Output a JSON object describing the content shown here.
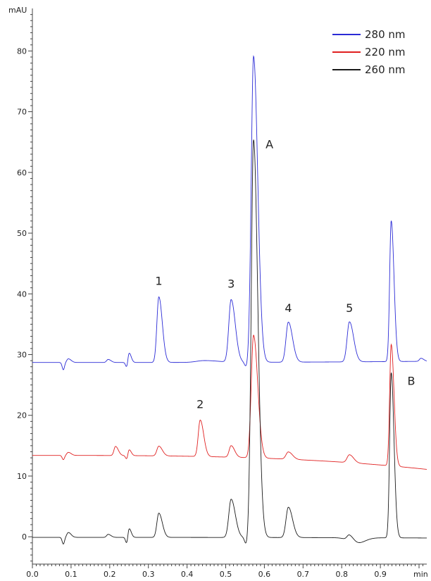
{
  "chart_data": {
    "type": "line",
    "title": "",
    "xlabel": "",
    "ylabel": "",
    "x_unit": "min",
    "y_unit": "mAU",
    "xlim": [
      0.0,
      1.02
    ],
    "ylim": [
      -4.5,
      87
    ],
    "x_ticks": [
      {
        "value": 0.0,
        "label": "0.0"
      },
      {
        "value": 0.1,
        "label": "0.1"
      },
      {
        "value": 0.2,
        "label": "0.2"
      },
      {
        "value": 0.3,
        "label": "0.3"
      },
      {
        "value": 0.4,
        "label": "0.4"
      },
      {
        "value": 0.5,
        "label": "0.5"
      },
      {
        "value": 0.6,
        "label": "0.6"
      },
      {
        "value": 0.7,
        "label": "0.7"
      },
      {
        "value": 0.8,
        "label": "0.8"
      },
      {
        "value": 0.9,
        "label": "0.9"
      }
    ],
    "y_ticks": [
      {
        "value": 0,
        "label": "0"
      },
      {
        "value": 10,
        "label": "10"
      },
      {
        "value": 20,
        "label": "20"
      },
      {
        "value": 30,
        "label": "30"
      },
      {
        "value": 40,
        "label": "40"
      },
      {
        "value": 50,
        "label": "50"
      },
      {
        "value": 60,
        "label": "60"
      },
      {
        "value": 70,
        "label": "70"
      },
      {
        "value": 80,
        "label": "80"
      }
    ],
    "grid": false,
    "legend_position": "top-right",
    "series": [
      {
        "name": "280 nm",
        "color": "#2b2bd6",
        "baseline": 28.7,
        "baseline_end": 28.9,
        "peaks": [
          {
            "x": 0.093,
            "height": 0.6,
            "width": 0.004
          },
          {
            "x": 0.196,
            "height": 0.5,
            "width": 0.004
          },
          {
            "x": 0.25,
            "height": 1.6,
            "width": 0.003
          },
          {
            "x": 0.327,
            "height": 10.8,
            "width": 0.005
          },
          {
            "x": 0.445,
            "height": 0.3,
            "width": 0.02
          },
          {
            "x": 0.514,
            "height": 10.3,
            "width": 0.006
          },
          {
            "x": 0.572,
            "height": 50.4,
            "width": 0.006
          },
          {
            "x": 0.662,
            "height": 6.6,
            "width": 0.006
          },
          {
            "x": 0.82,
            "height": 6.6,
            "width": 0.006
          },
          {
            "x": 0.928,
            "height": 23.2,
            "width": 0.004
          },
          {
            "x": 1.005,
            "height": 0.5,
            "width": 0.004
          }
        ],
        "dips": [
          {
            "x": 0.08,
            "depth": 1.2,
            "width": 0.003
          },
          {
            "x": 0.244,
            "depth": 0.8,
            "width": 0.003
          },
          {
            "x": 0.553,
            "depth": 0.8,
            "width": 0.004
          }
        ]
      },
      {
        "name": "220 nm",
        "color": "#e02020",
        "baseline": 13.4,
        "baseline_end": 11.1,
        "peaks": [
          {
            "x": 0.093,
            "height": 0.5,
            "width": 0.004
          },
          {
            "x": 0.215,
            "height": 1.5,
            "width": 0.004
          },
          {
            "x": 0.25,
            "height": 1.0,
            "width": 0.003
          },
          {
            "x": 0.327,
            "height": 1.6,
            "width": 0.005
          },
          {
            "x": 0.434,
            "height": 6.0,
            "width": 0.005
          },
          {
            "x": 0.514,
            "height": 1.9,
            "width": 0.005
          },
          {
            "x": 0.572,
            "height": 20.2,
            "width": 0.006
          },
          {
            "x": 0.662,
            "height": 1.2,
            "width": 0.006
          },
          {
            "x": 0.82,
            "height": 1.3,
            "width": 0.006
          },
          {
            "x": 0.928,
            "height": 20.0,
            "width": 0.004
          }
        ],
        "dips": [
          {
            "x": 0.08,
            "depth": 0.7,
            "width": 0.003
          },
          {
            "x": 0.244,
            "depth": 0.6,
            "width": 0.003
          }
        ]
      },
      {
        "name": "260 nm",
        "color": "#1a1a1a",
        "baseline": -0.1,
        "baseline_end": -0.2,
        "peaks": [
          {
            "x": 0.093,
            "height": 0.8,
            "width": 0.004
          },
          {
            "x": 0.196,
            "height": 0.5,
            "width": 0.004
          },
          {
            "x": 0.25,
            "height": 1.5,
            "width": 0.003
          },
          {
            "x": 0.327,
            "height": 4.0,
            "width": 0.005
          },
          {
            "x": 0.514,
            "height": 6.3,
            "width": 0.006
          },
          {
            "x": 0.572,
            "height": 65.5,
            "width": 0.006
          },
          {
            "x": 0.662,
            "height": 5.0,
            "width": 0.006
          },
          {
            "x": 0.82,
            "height": 1.0,
            "width": 0.006
          },
          {
            "x": 0.928,
            "height": 27.2,
            "width": 0.004
          }
        ],
        "dips": [
          {
            "x": 0.08,
            "depth": 1.1,
            "width": 0.003
          },
          {
            "x": 0.244,
            "depth": 1.0,
            "width": 0.003
          },
          {
            "x": 0.553,
            "depth": 1.2,
            "width": 0.004
          },
          {
            "x": 0.84,
            "depth": 0.9,
            "width": 0.02
          }
        ]
      }
    ],
    "annotations": [
      {
        "text": "1",
        "x": 0.327,
        "y": 41.5
      },
      {
        "text": "2",
        "x": 0.434,
        "y": 21.2
      },
      {
        "text": "3",
        "x": 0.514,
        "y": 41.0
      },
      {
        "text": "4",
        "x": 0.662,
        "y": 37.0
      },
      {
        "text": "5",
        "x": 0.82,
        "y": 37.0
      },
      {
        "text": "A",
        "x": 0.613,
        "y": 64.0
      },
      {
        "text": "B",
        "x": 0.98,
        "y": 25.0
      }
    ]
  }
}
